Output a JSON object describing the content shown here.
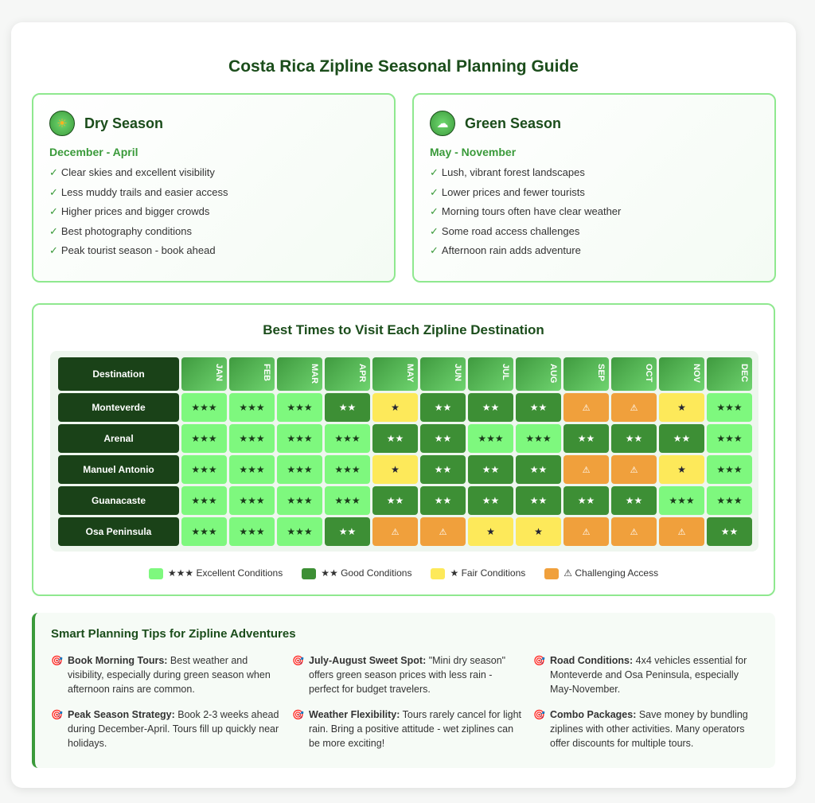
{
  "title": "Costa Rica Zipline Seasonal Planning Guide",
  "seasons": [
    {
      "name": "Dry Season",
      "icon": "sun-icon",
      "range": "December - April",
      "items": [
        "Clear skies and excellent visibility",
        "Less muddy trails and easier access",
        "Higher prices and bigger crowds",
        "Best photography conditions",
        "Peak tourist season - book ahead"
      ]
    },
    {
      "name": "Green Season",
      "icon": "rain-cloud-icon",
      "range": "May - November",
      "items": [
        "Lush, vibrant forest landscapes",
        "Lower prices and fewer tourists",
        "Morning tours often have clear weather",
        "Some road access challenges",
        "Afternoon rain adds adventure"
      ]
    }
  ],
  "table": {
    "title": "Best Times to Visit Each Zipline Destination",
    "dest_header": "Destination",
    "months": [
      "JAN",
      "FEB",
      "MAR",
      "APR",
      "MAY",
      "JUN",
      "JUL",
      "AUG",
      "SEP",
      "OCT",
      "NOV",
      "DEC"
    ],
    "symbols": {
      "3": "★★★",
      "2": "★★",
      "1": "★",
      "W": "⚠"
    },
    "rows": [
      {
        "name": "Monteverde",
        "ratings": [
          "3",
          "3",
          "3",
          "2",
          "1",
          "2",
          "2",
          "2",
          "W",
          "W",
          "1",
          "3"
        ]
      },
      {
        "name": "Arenal",
        "ratings": [
          "3",
          "3",
          "3",
          "3",
          "2",
          "2",
          "3",
          "3",
          "2",
          "2",
          "2",
          "3"
        ]
      },
      {
        "name": "Manuel Antonio",
        "ratings": [
          "3",
          "3",
          "3",
          "3",
          "1",
          "2",
          "2",
          "2",
          "W",
          "W",
          "1",
          "3"
        ]
      },
      {
        "name": "Guanacaste",
        "ratings": [
          "3",
          "3",
          "3",
          "3",
          "2",
          "2",
          "2",
          "2",
          "2",
          "2",
          "3",
          "3"
        ]
      },
      {
        "name": "Osa Peninsula",
        "ratings": [
          "3",
          "3",
          "3",
          "2",
          "W",
          "W",
          "1",
          "1",
          "W",
          "W",
          "W",
          "2"
        ]
      }
    ],
    "legend": [
      {
        "cls": "r3",
        "color": "#7ef87e",
        "label": "★★★ Excellent Conditions"
      },
      {
        "cls": "r2",
        "color": "#3d8f35",
        "label": "★★ Good Conditions"
      },
      {
        "cls": "r1",
        "color": "#fde95a",
        "label": "★ Fair Conditions"
      },
      {
        "cls": "rw",
        "color": "#f0a03c",
        "label": "⚠ Challenging Access"
      }
    ]
  },
  "tips": {
    "title": "Smart Planning Tips for Zipline Adventures",
    "icon": "target-icon",
    "items": [
      {
        "head": "Book Morning Tours:",
        "text": " Best weather and visibility, especially during green season when afternoon rains are common."
      },
      {
        "head": "July-August Sweet Spot:",
        "text": " \"Mini dry season\" offers green season prices with less rain - perfect for budget travelers."
      },
      {
        "head": "Road Conditions:",
        "text": " 4x4 vehicles essential for Monteverde and Osa Peninsula, especially May-November."
      },
      {
        "head": "Peak Season Strategy:",
        "text": " Book 2-3 weeks ahead during December-April. Tours fill up quickly near holidays."
      },
      {
        "head": "Weather Flexibility:",
        "text": " Tours rarely cancel for light rain. Bring a positive attitude - wet ziplines can be more exciting!"
      },
      {
        "head": "Combo Packages:",
        "text": " Save money by bundling ziplines with other activities. Many operators offer discounts for multiple tours."
      }
    ]
  }
}
